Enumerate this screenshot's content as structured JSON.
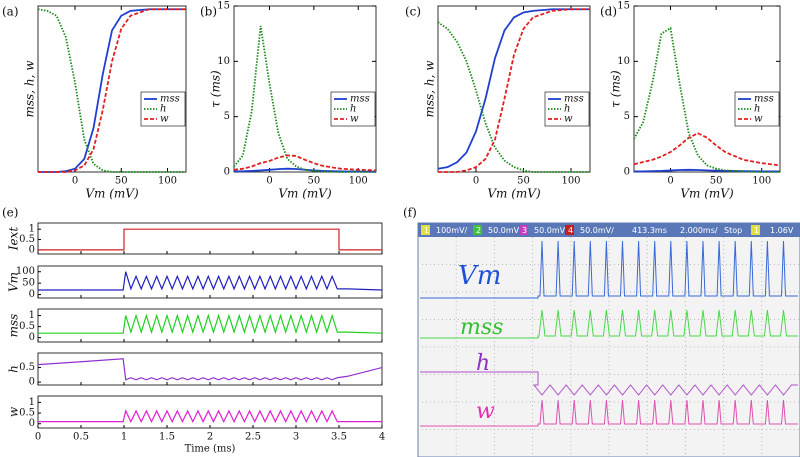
{
  "chart_data": [
    {
      "type": "line",
      "panel": "(a)",
      "xlabel": "Vm (mV)",
      "ylabel": "mss, h, w",
      "xlim": [
        -40,
        120
      ],
      "ylim": [
        0,
        1.02
      ],
      "xticks": [
        0,
        50,
        100
      ],
      "legend": "center right",
      "x": [
        -40,
        -30,
        -20,
        -10,
        0,
        10,
        20,
        30,
        40,
        50,
        60,
        80,
        100,
        120
      ],
      "series": [
        {
          "name": "mss",
          "color": "#1f3fd0",
          "linestyle": "solid",
          "values": [
            0,
            0,
            0,
            0.005,
            0.02,
            0.08,
            0.27,
            0.6,
            0.87,
            0.96,
            0.99,
            1,
            1,
            1
          ]
        },
        {
          "name": "h",
          "color": "#1a8a1a",
          "linestyle": "dotted",
          "values": [
            1,
            0.99,
            0.96,
            0.83,
            0.55,
            0.2,
            0.05,
            0.01,
            0,
            0,
            0,
            0,
            0,
            0
          ]
        },
        {
          "name": "w",
          "color": "#e02020",
          "linestyle": "dashed",
          "values": [
            0,
            0,
            0,
            0,
            0.01,
            0.04,
            0.14,
            0.38,
            0.68,
            0.88,
            0.96,
            1,
            1,
            1
          ]
        }
      ]
    },
    {
      "type": "line",
      "panel": "(b)",
      "xlabel": "Vm (mV)",
      "ylabel": "τ (ms)",
      "xlim": [
        -40,
        120
      ],
      "ylim": [
        0,
        15
      ],
      "xticks": [
        0,
        50,
        100
      ],
      "yticks": [
        0,
        5,
        10,
        15
      ],
      "legend": "center right",
      "x": [
        -40,
        -30,
        -20,
        -10,
        0,
        10,
        20,
        30,
        40,
        50,
        60,
        80,
        100,
        120
      ],
      "series": [
        {
          "name": "mss",
          "color": "#1f3fd0",
          "linestyle": "solid",
          "values": [
            0.05,
            0.07,
            0.1,
            0.14,
            0.2,
            0.26,
            0.3,
            0.27,
            0.2,
            0.14,
            0.1,
            0.06,
            0.04,
            0.03
          ]
        },
        {
          "name": "h",
          "color": "#1a8a1a",
          "linestyle": "dotted",
          "values": [
            0.5,
            1.5,
            5.5,
            13.2,
            8,
            3.5,
            1.2,
            0.5,
            0.2,
            0.1,
            0.05,
            0,
            0,
            0
          ]
        },
        {
          "name": "w",
          "color": "#e02020",
          "linestyle": "dashed",
          "values": [
            0.2,
            0.3,
            0.5,
            0.8,
            1,
            1.3,
            1.5,
            1.45,
            1.1,
            0.8,
            0.55,
            0.3,
            0.2,
            0.15
          ]
        }
      ]
    },
    {
      "type": "line",
      "panel": "(c)",
      "xlabel": "Vm (mV)",
      "ylabel": "mss, h, w",
      "xlim": [
        -40,
        120
      ],
      "ylim": [
        0,
        1.02
      ],
      "xticks": [
        0,
        50,
        100
      ],
      "legend": "center right",
      "x": [
        -40,
        -30,
        -20,
        -10,
        0,
        10,
        20,
        30,
        40,
        50,
        60,
        80,
        100,
        120
      ],
      "series": [
        {
          "name": "mss",
          "color": "#1f3fd0",
          "linestyle": "solid",
          "values": [
            0.02,
            0.03,
            0.06,
            0.12,
            0.25,
            0.45,
            0.7,
            0.87,
            0.95,
            0.98,
            0.99,
            1,
            1,
            1
          ]
        },
        {
          "name": "h",
          "color": "#1a8a1a",
          "linestyle": "dotted",
          "values": [
            0.92,
            0.88,
            0.8,
            0.68,
            0.5,
            0.3,
            0.15,
            0.07,
            0.03,
            0.01,
            0,
            0,
            0,
            0
          ]
        },
        {
          "name": "w",
          "color": "#e02020",
          "linestyle": "dashed",
          "values": [
            0,
            0,
            0,
            0.01,
            0.03,
            0.08,
            0.2,
            0.45,
            0.72,
            0.88,
            0.95,
            0.99,
            1,
            1
          ]
        }
      ]
    },
    {
      "type": "line",
      "panel": "(d)",
      "xlabel": "Vm (mV)",
      "ylabel": "τ (ms)",
      "xlim": [
        -40,
        120
      ],
      "ylim": [
        0,
        15
      ],
      "xticks": [
        0,
        50,
        100
      ],
      "yticks": [
        0,
        5,
        10,
        15
      ],
      "legend": "center right",
      "x": [
        -40,
        -30,
        -20,
        -10,
        0,
        10,
        20,
        30,
        40,
        50,
        60,
        80,
        100,
        120
      ],
      "series": [
        {
          "name": "mss",
          "color": "#1f3fd0",
          "linestyle": "solid",
          "values": [
            0.05,
            0.06,
            0.08,
            0.1,
            0.14,
            0.18,
            0.2,
            0.18,
            0.15,
            0.12,
            0.1,
            0.08,
            0.06,
            0.05
          ]
        },
        {
          "name": "h",
          "color": "#1a8a1a",
          "linestyle": "dotted",
          "values": [
            3,
            4.5,
            8,
            12.5,
            13,
            8,
            3.5,
            1.5,
            0.6,
            0.3,
            0.15,
            0.05,
            0,
            0
          ]
        },
        {
          "name": "w",
          "color": "#e02020",
          "linestyle": "dashed",
          "values": [
            0.7,
            0.9,
            1.1,
            1.4,
            1.8,
            2.4,
            3.1,
            3.5,
            3.1,
            2.4,
            1.8,
            1.1,
            0.8,
            0.6
          ]
        }
      ]
    },
    {
      "type": "stacked-lines",
      "panel": "(e)",
      "xlabel": "Time (ms)",
      "xlim": [
        0,
        4
      ],
      "xticks": [
        0,
        0.5,
        1,
        1.5,
        2,
        2.5,
        3,
        3.5,
        4
      ],
      "x": [
        0,
        0.5,
        0.99,
        1.02,
        1.08,
        1.14,
        1.2,
        1.26,
        1.32,
        1.38,
        1.44,
        1.5,
        1.56,
        1.62,
        1.68,
        1.74,
        1.8,
        1.86,
        1.92,
        1.98,
        2.04,
        2.1,
        2.16,
        2.22,
        2.28,
        2.34,
        2.4,
        2.46,
        2.52,
        2.58,
        2.64,
        2.7,
        2.76,
        2.82,
        2.88,
        2.94,
        3,
        3.06,
        3.12,
        3.18,
        3.24,
        3.3,
        3.36,
        3.42,
        3.48,
        3.6,
        4
      ],
      "subplots": [
        {
          "ylabel": "Iext",
          "color": "#d02020",
          "ylim": [
            -0.2,
            1.3
          ],
          "yticks": [
            0,
            0.5,
            1
          ],
          "x": [
            0,
            1,
            1,
            3.5,
            3.5,
            4
          ],
          "values": [
            0,
            0,
            1,
            1,
            0,
            0
          ]
        },
        {
          "ylabel": "Vm",
          "color": "#2020c0",
          "ylim": [
            -15,
            125
          ],
          "yticks": [
            0,
            50,
            100
          ],
          "values": [
            20,
            20,
            20,
            100,
            25,
            80,
            25,
            80,
            25,
            80,
            25,
            80,
            25,
            80,
            25,
            80,
            25,
            80,
            25,
            80,
            25,
            80,
            25,
            80,
            25,
            80,
            25,
            80,
            25,
            80,
            25,
            80,
            25,
            80,
            25,
            80,
            25,
            80,
            25,
            80,
            25,
            80,
            25,
            80,
            25,
            25,
            20
          ]
        },
        {
          "ylabel": "mss",
          "color": "#20d020",
          "ylim": [
            -0.2,
            1.3
          ],
          "yticks": [
            0,
            0.5,
            1
          ],
          "values": [
            0.2,
            0.2,
            0.2,
            1,
            0.25,
            1,
            0.25,
            1,
            0.25,
            1,
            0.25,
            1,
            0.25,
            1,
            0.25,
            1,
            0.25,
            1,
            0.25,
            1,
            0.25,
            1,
            0.25,
            1,
            0.25,
            1,
            0.25,
            1,
            0.25,
            1,
            0.25,
            1,
            0.25,
            1,
            0.25,
            1,
            0.25,
            1,
            0.25,
            1,
            0.25,
            1,
            0.25,
            1,
            0.25,
            0.25,
            0.2
          ]
        },
        {
          "ylabel": "h",
          "color": "#9030d0",
          "ylim": [
            -0.1,
            1
          ],
          "yticks": [
            0,
            0.5
          ],
          "values": [
            0.6,
            0.7,
            0.8,
            0.08,
            0.15,
            0.08,
            0.15,
            0.08,
            0.15,
            0.08,
            0.15,
            0.08,
            0.15,
            0.08,
            0.15,
            0.08,
            0.15,
            0.08,
            0.15,
            0.08,
            0.15,
            0.08,
            0.15,
            0.08,
            0.15,
            0.08,
            0.15,
            0.08,
            0.15,
            0.08,
            0.15,
            0.08,
            0.15,
            0.08,
            0.15,
            0.08,
            0.15,
            0.08,
            0.15,
            0.08,
            0.15,
            0.08,
            0.15,
            0.08,
            0.15,
            0.2,
            0.5
          ]
        },
        {
          "ylabel": "w",
          "color": "#e020d0",
          "ylim": [
            -0.2,
            1.3
          ],
          "yticks": [
            0,
            0.5,
            1
          ],
          "values": [
            0.1,
            0.1,
            0.1,
            0.6,
            0.1,
            0.6,
            0.1,
            0.6,
            0.1,
            0.6,
            0.1,
            0.6,
            0.1,
            0.6,
            0.1,
            0.6,
            0.1,
            0.6,
            0.1,
            0.6,
            0.1,
            0.6,
            0.1,
            0.6,
            0.1,
            0.6,
            0.1,
            0.6,
            0.1,
            0.6,
            0.1,
            0.6,
            0.1,
            0.6,
            0.1,
            0.6,
            0.1,
            0.6,
            0.1,
            0.6,
            0.1,
            0.6,
            0.1,
            0.6,
            0.1,
            0.1,
            0.1
          ]
        }
      ]
    }
  ],
  "oscilloscope": {
    "panel": "(f)",
    "header": [
      "1",
      "100mV/",
      "2",
      "50.0mV/",
      "3",
      "50.0mV/",
      "4",
      "50.0mV/",
      "413.3ms",
      "2.000ms/",
      "Stop",
      "1",
      "1.06V"
    ],
    "labels": [
      "Vm",
      "mss",
      "h",
      "w"
    ]
  }
}
